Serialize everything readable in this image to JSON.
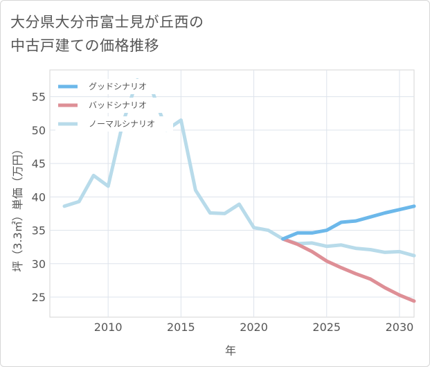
{
  "title_lines": [
    "大分県大分市富士見が丘西の",
    "中古戸建ての価格推移"
  ],
  "chart_data": {
    "type": "line",
    "xlabel": "年",
    "ylabel": "坪（3.3㎡）単価（万円）",
    "xlim": [
      2006,
      2031
    ],
    "ylim": [
      22,
      59
    ],
    "x_ticks": [
      2010,
      2015,
      2020,
      2025,
      2030
    ],
    "y_ticks": [
      25,
      30,
      35,
      40,
      45,
      50,
      55
    ],
    "grid": true,
    "legend_position": "top-left",
    "series": [
      {
        "name": "グッドシナリオ",
        "color": "#6cb8ea",
        "x": [
          2022,
          2023,
          2024,
          2025,
          2026,
          2027,
          2028,
          2029,
          2030,
          2031
        ],
        "y": [
          33.7,
          34.6,
          34.6,
          35.0,
          36.2,
          36.4,
          37.0,
          37.6,
          38.1,
          38.6
        ]
      },
      {
        "name": "バッドシナリオ",
        "color": "#de8f96",
        "x": [
          2022,
          2023,
          2024,
          2025,
          2026,
          2027,
          2028,
          2029,
          2030,
          2031
        ],
        "y": [
          33.7,
          32.9,
          31.8,
          30.4,
          29.4,
          28.5,
          27.7,
          26.4,
          25.3,
          24.4
        ]
      },
      {
        "name": "ノーマルシナリオ",
        "color": "#b8dbea",
        "x": [
          2007,
          2008,
          2009,
          2010,
          2011,
          2012,
          2013,
          2014,
          2015,
          2016,
          2017,
          2018,
          2019,
          2020,
          2021,
          2022,
          2023,
          2024,
          2025,
          2026,
          2027,
          2028,
          2029,
          2030,
          2031
        ],
        "y": [
          38.6,
          39.3,
          43.2,
          41.6,
          51.0,
          57.5,
          56.0,
          50.0,
          51.5,
          41.0,
          37.6,
          37.5,
          38.9,
          35.4,
          35.0,
          33.7,
          33.0,
          33.1,
          32.6,
          32.8,
          32.3,
          32.1,
          31.7,
          31.8,
          31.2
        ]
      }
    ]
  }
}
